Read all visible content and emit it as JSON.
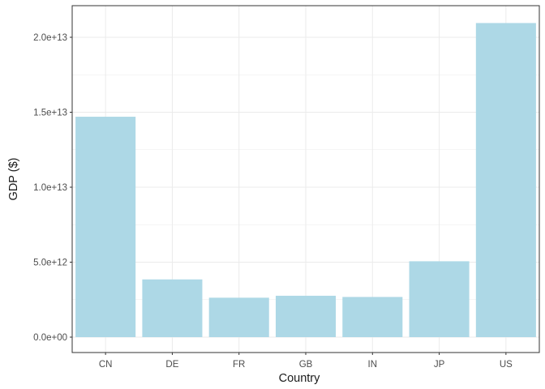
{
  "chart_data": {
    "type": "bar",
    "categories": [
      "CN",
      "DE",
      "FR",
      "GB",
      "IN",
      "JP",
      "US"
    ],
    "values": [
      14700000000000.0,
      3850000000000.0,
      2630000000000.0,
      2760000000000.0,
      2680000000000.0,
      5060000000000.0,
      20950000000000.0
    ],
    "xlabel": "Country",
    "ylabel": "GDP ($)",
    "ylim": [
      0,
      22000000000000.0
    ],
    "yticks": [
      0,
      5000000000000.0,
      10000000000000.0,
      15000000000000.0,
      20000000000000.0
    ],
    "ytick_labels": [
      "0.0e+00",
      "5.0e+12",
      "1.0e+13",
      "1.5e+13",
      "2.0e+13"
    ],
    "grid": true,
    "bar_color": "#add8e6",
    "panel_border_color": "#333333",
    "grid_color": "#ebebeb"
  }
}
